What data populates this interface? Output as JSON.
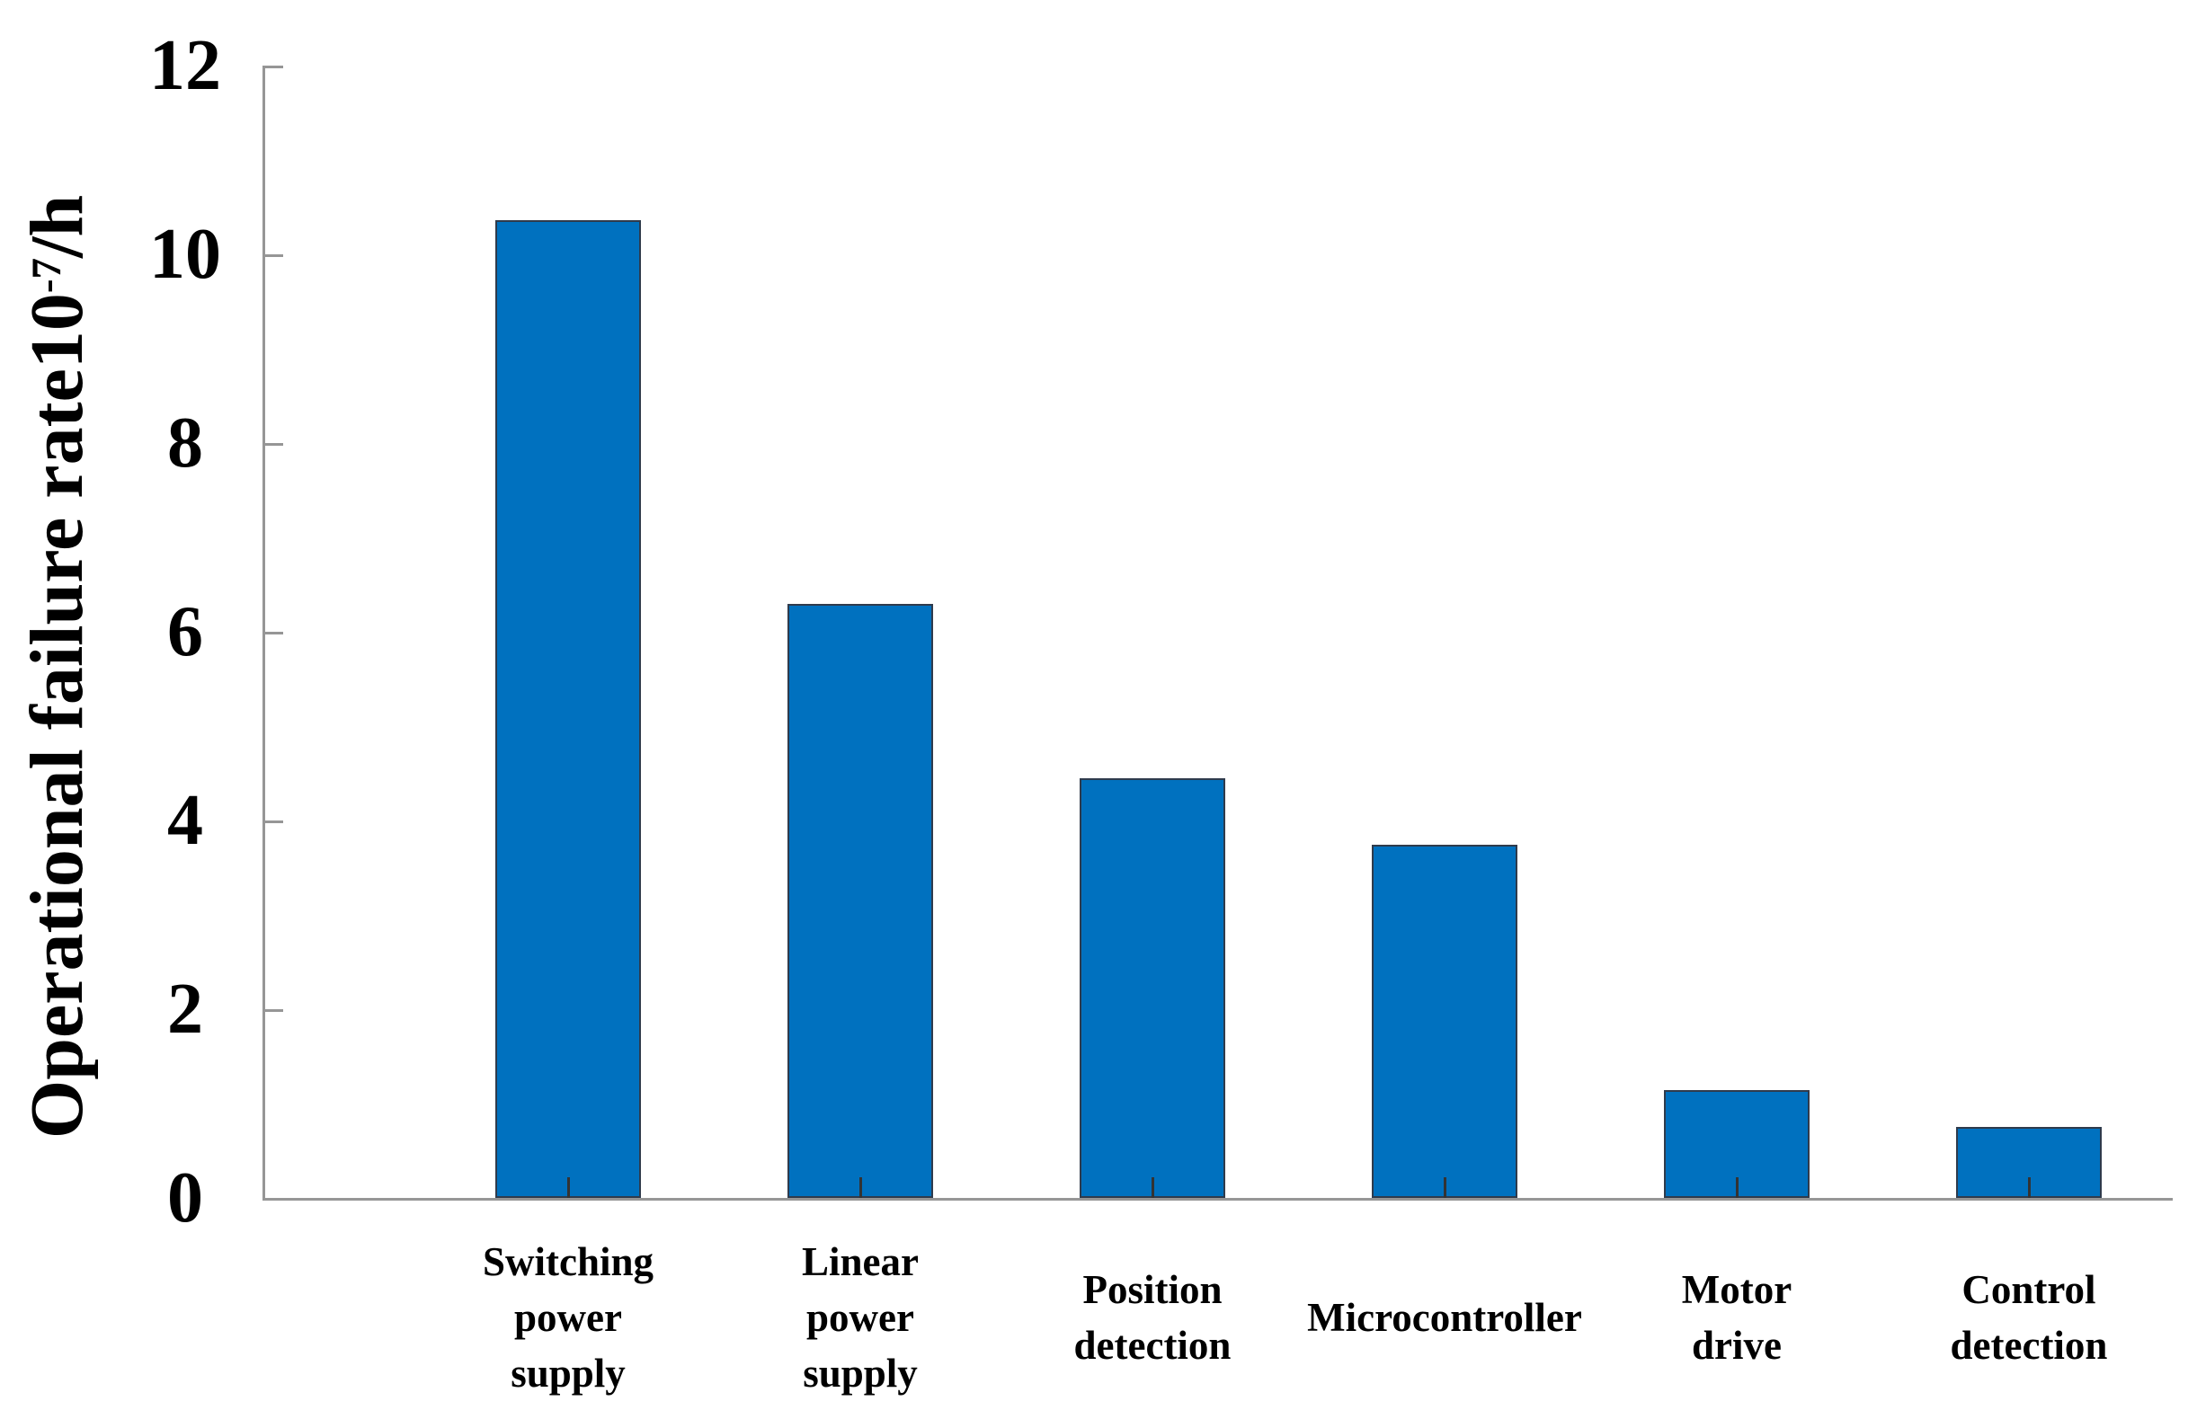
{
  "chart_data": {
    "type": "bar",
    "title": "",
    "categories": [
      "Switching power supply",
      "Linear power supply",
      "Position detection",
      "Microcontroller",
      "Motor drive",
      "Control detection"
    ],
    "category_lines": [
      [
        "Switching",
        "power",
        "supply"
      ],
      [
        "Linear",
        "power",
        "supply"
      ],
      [
        "Position",
        "detection"
      ],
      [
        "Microcontroller"
      ],
      [
        "Motor",
        "drive"
      ],
      [
        "Control",
        "detection"
      ]
    ],
    "values": [
      10.36,
      6.3,
      4.45,
      3.74,
      1.14,
      0.75
    ],
    "xlabel": "",
    "ylabel": "Operational failure rate10⁻⁷/h",
    "ylabel_parts": {
      "prefix": "Operational failure rate10",
      "superscript": "-7",
      "suffix": "/h"
    },
    "yticks": [
      0,
      2,
      4,
      6,
      8,
      10,
      12
    ],
    "ylim": [
      0,
      12
    ],
    "grid": false,
    "legend": "none",
    "colors": {
      "bar_fill": "#0071BF",
      "bar_border": "#2F3B4C",
      "axis": "#969696",
      "xtick": "#333333",
      "text": "#000000"
    }
  }
}
